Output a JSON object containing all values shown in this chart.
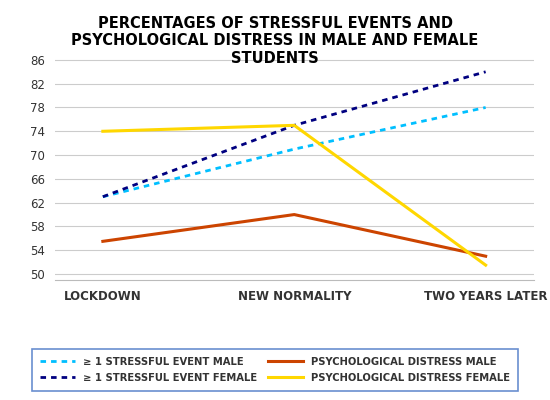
{
  "title": "PERCENTAGES OF STRESSFUL EVENTS AND\nPSYCHOLOGICAL DISTRESS IN MALE AND FEMALE\nSTUDENTS",
  "x_labels": [
    "LOCKDOWN",
    "NEW NORMALITY",
    "TWO YEARS LATER"
  ],
  "x_positions": [
    0,
    1,
    2
  ],
  "series": {
    "stressful_male": {
      "values": [
        63,
        71,
        78
      ],
      "color": "#00BFFF",
      "linestyle": "dotted",
      "linewidth": 2.0,
      "label": "≥ 1 STRESSFUL EVENT MALE"
    },
    "stressful_female": {
      "values": [
        63,
        75,
        84
      ],
      "color": "#000080",
      "linestyle": "dotted",
      "linewidth": 2.0,
      "label": "≥ 1 STRESSFUL EVENT FEMALE"
    },
    "distress_male": {
      "values": [
        55.5,
        60,
        53
      ],
      "color": "#CC4400",
      "linestyle": "solid",
      "linewidth": 2.2,
      "label": "PSYCHOLOGICAL DISTRESS MALE"
    },
    "distress_female": {
      "values": [
        74,
        75,
        51.5
      ],
      "color": "#FFD700",
      "linestyle": "solid",
      "linewidth": 2.2,
      "label": "PSYCHOLOGICAL DISTRESS FEMALE"
    }
  },
  "ylim": [
    49,
    88
  ],
  "yticks": [
    50,
    54,
    58,
    62,
    66,
    70,
    74,
    78,
    82,
    86
  ],
  "background_color": "#ffffff",
  "grid_color": "#cccccc",
  "title_fontsize": 10.5,
  "tick_fontsize": 8.5,
  "legend_fontsize": 7.2
}
